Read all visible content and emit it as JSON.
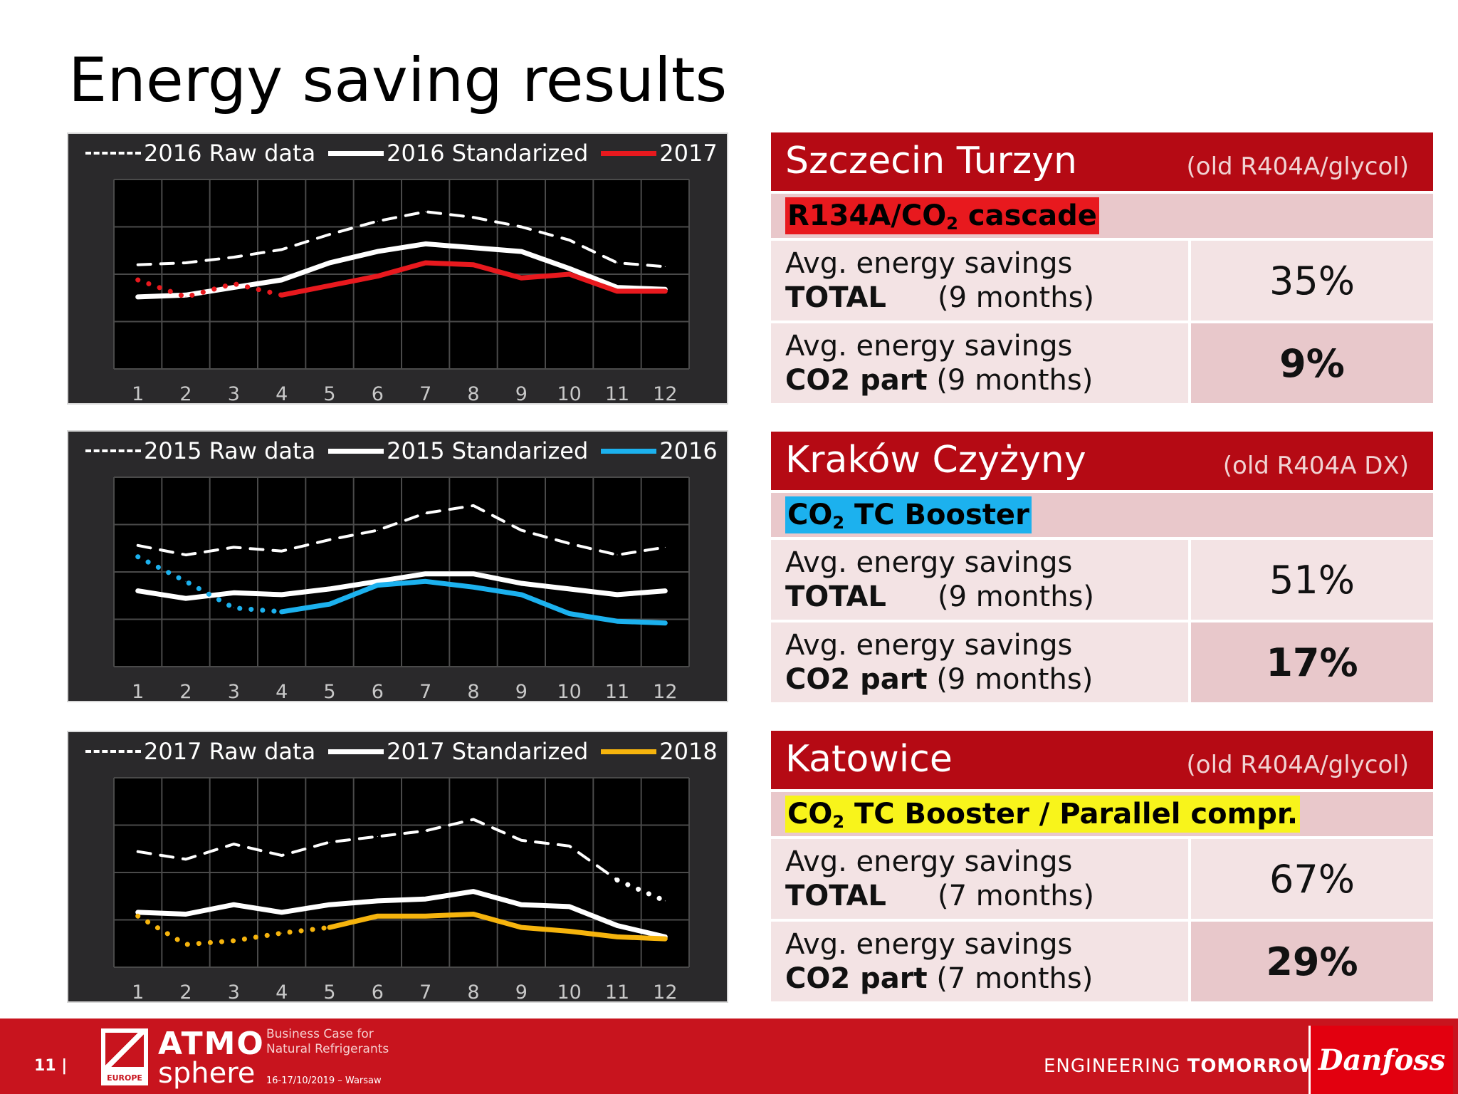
{
  "page": {
    "title": "Energy saving results",
    "page_number": "11 |"
  },
  "colors": {
    "red": "#e8191e",
    "blue": "#1cb1ee",
    "yellow": "#f6b40d",
    "brand": "#b50a14"
  },
  "chart_data": [
    {
      "type": "line",
      "categories": [
        "1",
        "2",
        "3",
        "4",
        "5",
        "6",
        "7",
        "8",
        "9",
        "10",
        "11",
        "12"
      ],
      "ylim": [
        0,
        100
      ],
      "grid": true,
      "legend": "top",
      "series": [
        {
          "name": "2016 Raw data",
          "style": "dashed",
          "color": "#ffffff",
          "values": [
            55,
            56,
            59,
            63,
            71,
            78,
            83,
            80,
            75,
            68,
            56,
            54
          ]
        },
        {
          "name": "2016 Standarized",
          "style": "solid",
          "color": "#ffffff",
          "values": [
            38,
            39,
            43,
            47,
            56,
            62,
            66,
            64,
            62,
            53,
            43,
            42
          ]
        },
        {
          "name": "2017",
          "style": "solid",
          "color": "#e8191e",
          "values": [
            47,
            38,
            45,
            39,
            44,
            49,
            56,
            55,
            48,
            50,
            41,
            41
          ],
          "dotted_until": 3
        }
      ]
    },
    {
      "type": "line",
      "categories": [
        "1",
        "2",
        "3",
        "4",
        "5",
        "6",
        "7",
        "8",
        "9",
        "10",
        "11",
        "12"
      ],
      "ylim": [
        0,
        100
      ],
      "grid": true,
      "legend": "top",
      "series": [
        {
          "name": "2015 Raw data",
          "style": "dashed",
          "color": "#ffffff",
          "values": [
            64,
            59,
            63,
            61,
            67,
            72,
            81,
            85,
            72,
            65,
            59,
            63
          ]
        },
        {
          "name": "2015 Standarized",
          "style": "solid",
          "color": "#ffffff",
          "values": [
            40,
            36,
            39,
            38,
            41,
            45,
            49,
            49,
            44,
            41,
            38,
            40
          ]
        },
        {
          "name": "2016",
          "style": "solid",
          "color": "#1cb1ee",
          "values": [
            58,
            45,
            31,
            29,
            33,
            43,
            45,
            42,
            38,
            28,
            24,
            23
          ],
          "dotted_until": 3
        }
      ]
    },
    {
      "type": "line",
      "categories": [
        "1",
        "2",
        "3",
        "4",
        "5",
        "6",
        "7",
        "8",
        "9",
        "10",
        "11",
        "12"
      ],
      "ylim": [
        0,
        100
      ],
      "grid": true,
      "legend": "top",
      "series": [
        {
          "name": "2017 Raw data",
          "style": "dashed",
          "color": "#ffffff",
          "values": [
            61,
            57,
            65,
            59,
            66,
            69,
            72,
            78,
            67,
            64,
            46,
            35
          ],
          "dotted_from": 10
        },
        {
          "name": "2017 Standarized",
          "style": "solid",
          "color": "#ffffff",
          "values": [
            29,
            28,
            33,
            29,
            33,
            35,
            36,
            40,
            33,
            32,
            22,
            16
          ],
          "dotted_from": 11
        },
        {
          "name": "2018",
          "style": "solid",
          "color": "#f6b40d",
          "values": [
            27,
            12,
            14,
            18,
            21,
            27,
            27,
            28,
            21,
            19,
            16,
            15
          ],
          "dotted_until": 4
        }
      ]
    }
  ],
  "sites": [
    {
      "name": "Szczecin Turzyn",
      "old": "(old R404A/glycol)",
      "tech_before": "R134A/CO",
      "tech_sub": "2",
      "tech_after": " cascade",
      "tech_color": "#e8191e",
      "row1_label": "Avg. energy savings",
      "row1_bold": "TOTAL",
      "row1_period": "(9 months)",
      "row1_value": "35%",
      "row2_label": "Avg. energy savings",
      "row2_bold": "CO2 part",
      "row2_period": "(9 months)",
      "row2_value": "9%"
    },
    {
      "name": "Kraków Czyżyny",
      "old": "(old R404A DX)",
      "tech_before": "CO",
      "tech_sub": "2",
      "tech_after": " TC Booster",
      "tech_color": "#1cb1ee",
      "row1_label": "Avg. energy savings",
      "row1_bold": "TOTAL",
      "row1_period": "(9 months)",
      "row1_value": "51%",
      "row2_label": "Avg. energy savings",
      "row2_bold": "CO2 part",
      "row2_period": "(9 months)",
      "row2_value": "17%"
    },
    {
      "name": "Katowice",
      "old": "(old R404A/glycol)",
      "tech_before": "CO",
      "tech_sub": "2",
      "tech_after": " TC Booster / Parallel compr.",
      "tech_color": "#f8f41b",
      "row1_label": "Avg. energy savings",
      "row1_bold": "TOTAL",
      "row1_period": "(7 months)",
      "row1_value": "67%",
      "row2_label": "Avg. energy savings",
      "row2_bold": "CO2 part",
      "row2_period": "(7 months)",
      "row2_value": "29%"
    }
  ],
  "footer": {
    "logo_small": "EUROPE",
    "logo_top": "ATMO",
    "logo_bottom": "sphere",
    "tagline_1": "Business Case for",
    "tagline_2": "Natural Refrigerants",
    "dates": "16-17/10/2019 – Warsaw",
    "eng_light": "ENGINEERING ",
    "eng_bold": "TOMORROW",
    "brand": "Danfoss"
  }
}
